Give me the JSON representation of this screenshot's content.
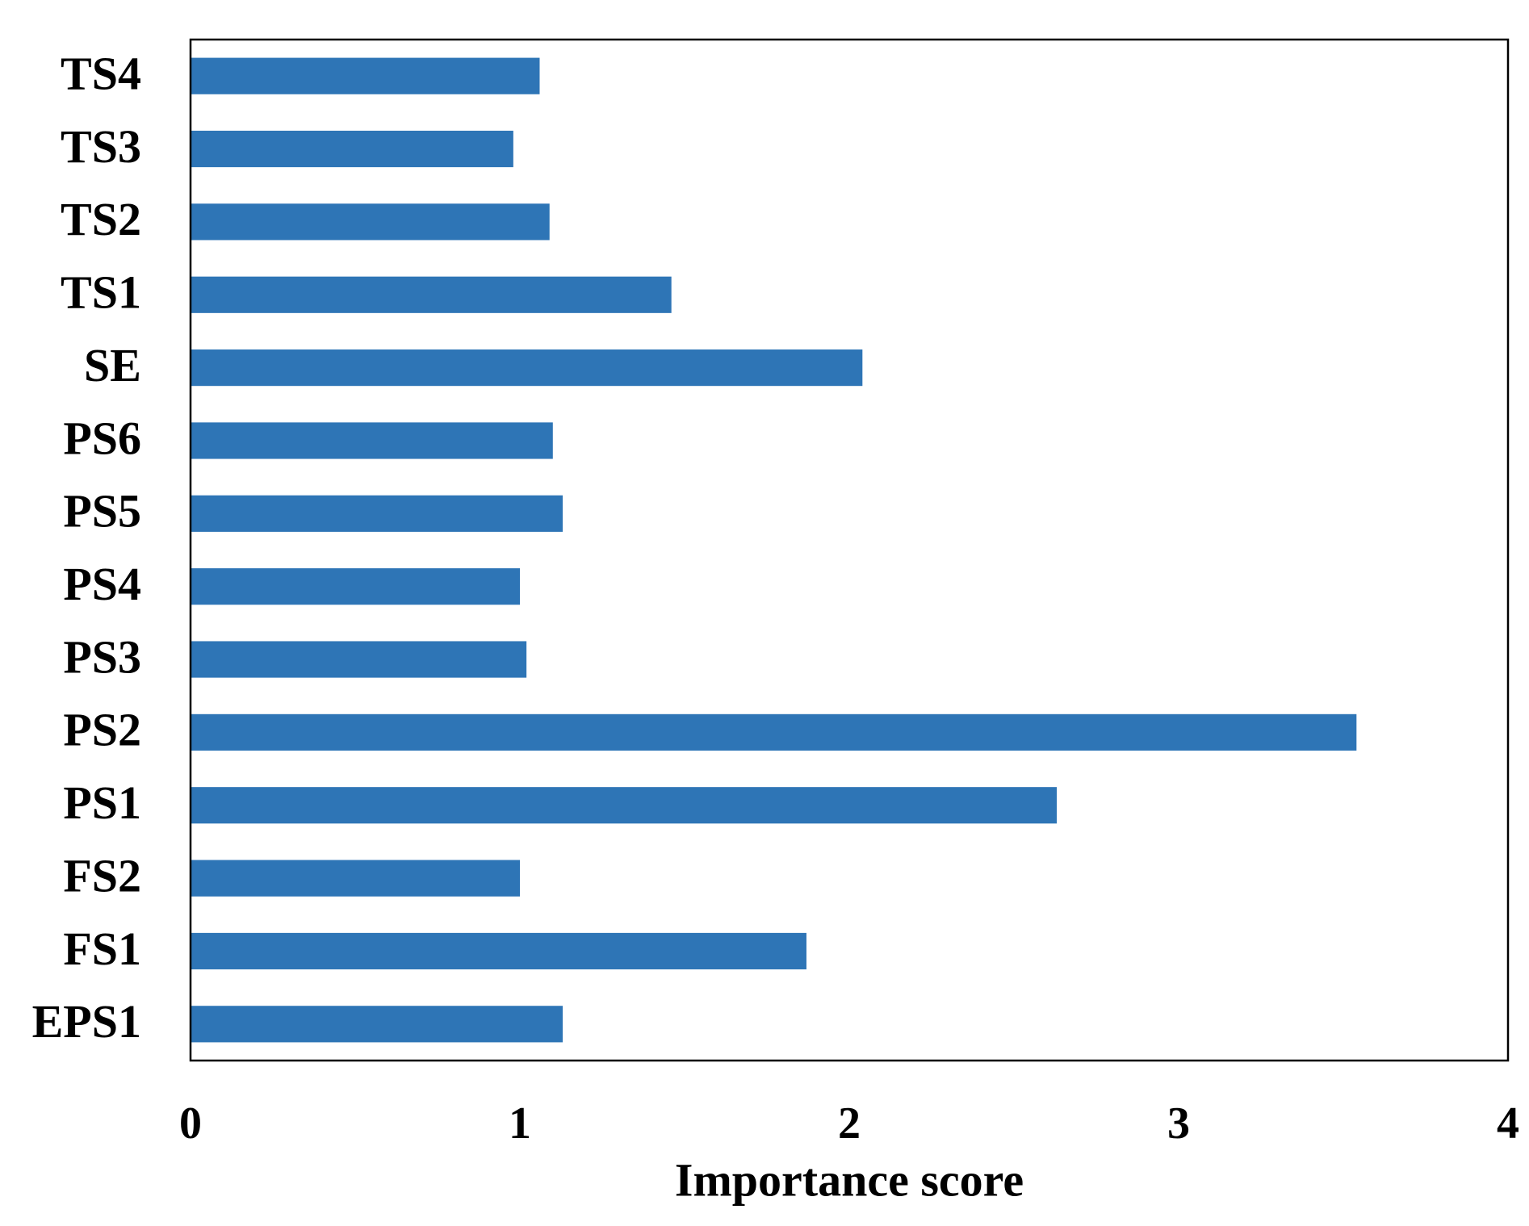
{
  "chart_data": {
    "type": "barh",
    "x_label": "Importance score",
    "categories": [
      "EPS1",
      "FS1",
      "FS2",
      "PS1",
      "PS2",
      "PS3",
      "PS4",
      "PS5",
      "PS6",
      "SE",
      "TS1",
      "TS2",
      "TS3",
      "TS4"
    ],
    "values": [
      1.13,
      1.87,
      1.0,
      2.63,
      3.54,
      1.02,
      1.0,
      1.13,
      1.1,
      2.04,
      1.46,
      1.09,
      0.98,
      1.06
    ],
    "color": "#2e75b6",
    "xlim": [
      0,
      4
    ],
    "xticks": [
      0,
      1,
      2,
      3,
      4
    ],
    "grid": false
  }
}
